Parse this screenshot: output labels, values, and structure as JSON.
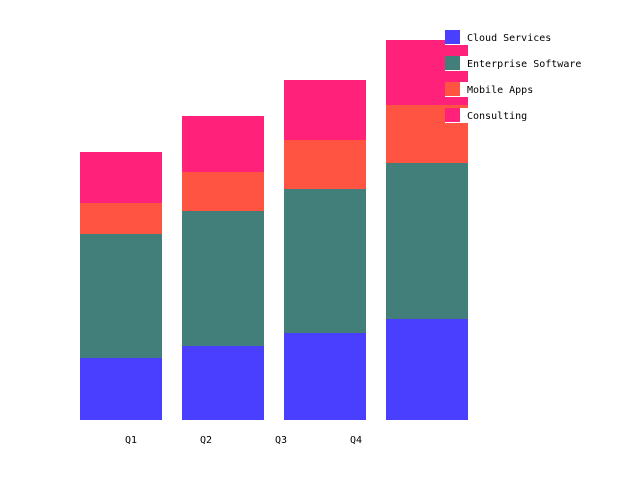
{
  "chart_data": {
    "type": "bar",
    "stacked": true,
    "title": "",
    "xlabel": "",
    "ylabel": "",
    "categories": [
      "Q1",
      "Q2",
      "Q3",
      "Q4"
    ],
    "series": [
      {
        "name": "Cloud Services",
        "color": "#4a3fff",
        "values": [
          62,
          74,
          87,
          101
        ]
      },
      {
        "name": "Enterprise Software",
        "color": "#427e7a",
        "values": [
          124,
          135,
          144,
          156
        ]
      },
      {
        "name": "Mobile Apps",
        "color": "#ff5441",
        "values": [
          31,
          39,
          49,
          58
        ]
      },
      {
        "name": "Consulting",
        "color": "#ff217a",
        "values": [
          51,
          56,
          60,
          65
        ]
      }
    ],
    "ylim": [
      0,
      400
    ],
    "grid": false,
    "axes_visible": false,
    "legend_position": "top-right"
  }
}
